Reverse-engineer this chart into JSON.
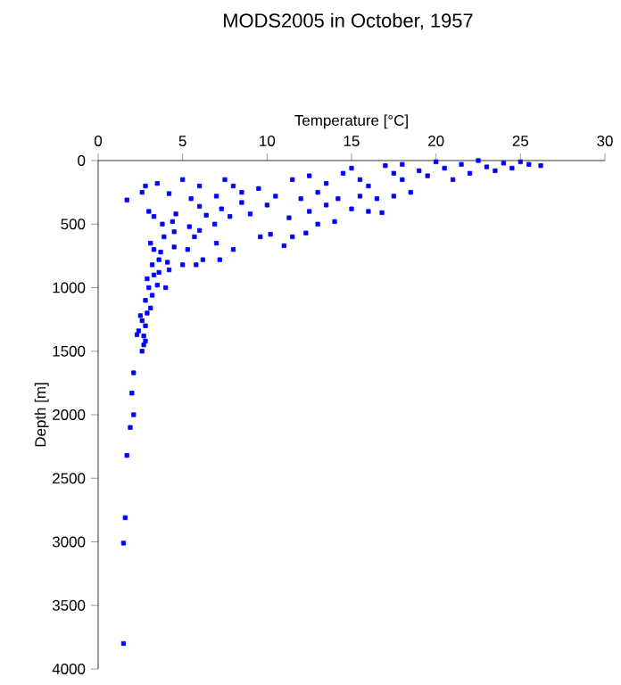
{
  "chart_data": {
    "type": "scatter",
    "title": "MODS2005 in October, 1957",
    "xlabel": "Temperature [°C]",
    "ylabel": "Depth [m]",
    "xlim": [
      0,
      30
    ],
    "xticks": [
      0,
      5,
      10,
      15,
      20,
      25,
      30
    ],
    "ylim": [
      4000,
      0
    ],
    "yticks": [
      0,
      500,
      1000,
      1500,
      2000,
      2500,
      3000,
      3500,
      4000
    ],
    "marker": "square",
    "series": [
      {
        "color": "#0000ff",
        "x": [
          1.5,
          1.5,
          1.6,
          1.7,
          1.9,
          2.1,
          2.0,
          2.1,
          2.6,
          2.7,
          2.8,
          2.7,
          2.3,
          2.4,
          2.8,
          2.6,
          2.5,
          2.9,
          3.1,
          2.8,
          3.2,
          3.0,
          3.5,
          4.0,
          2.9,
          3.3,
          3.6,
          4.2,
          3.2,
          3.6,
          4.1,
          5.0,
          5.8,
          3.3,
          3.7,
          4.5,
          5.3,
          6.2,
          7.2,
          3.1,
          3.9,
          4.5,
          5.7,
          6.0,
          7.0,
          3.8,
          4.4,
          5.4,
          6.9,
          8.0,
          3.0,
          3.3,
          4.6,
          6.4,
          7.3,
          9.6,
          10.2,
          11.0,
          11.5,
          12.3,
          13.0,
          14.0,
          2.6,
          2.8,
          1.7,
          3.5,
          4.2,
          5.0,
          6.0,
          7.5,
          8.5,
          9.5,
          10.5,
          9.0,
          11.3,
          12.5,
          13.5,
          15.0,
          16.0,
          16.8,
          14.2,
          15.5,
          16.5,
          17.5,
          18.5,
          11.5,
          12.5,
          13.5,
          14.5,
          15.0,
          15.5,
          16.0,
          17.0,
          17.5,
          18.0,
          18.0,
          19.0,
          19.5,
          20.0,
          20.5,
          21.0,
          21.5,
          22.0,
          22.5,
          23.0,
          23.5,
          24.0,
          24.5,
          25.0,
          25.5,
          26.2,
          5.5,
          7.0,
          8.0,
          12.0,
          13.0,
          6.0,
          7.8,
          10.0,
          8.5
        ],
        "values": [
          3800,
          3010,
          2810,
          2320,
          2100,
          2000,
          1830,
          1670,
          1500,
          1450,
          1420,
          1380,
          1370,
          1340,
          1300,
          1260,
          1220,
          1200,
          1160,
          1100,
          1060,
          1000,
          980,
          1000,
          930,
          900,
          880,
          860,
          820,
          780,
          800,
          820,
          820,
          700,
          720,
          680,
          700,
          780,
          780,
          650,
          600,
          560,
          600,
          550,
          650,
          500,
          480,
          520,
          500,
          700,
          400,
          440,
          420,
          430,
          380,
          600,
          580,
          670,
          600,
          570,
          500,
          480,
          250,
          200,
          310,
          180,
          260,
          150,
          200,
          150,
          250,
          220,
          280,
          420,
          450,
          400,
          350,
          380,
          400,
          410,
          300,
          280,
          300,
          280,
          250,
          150,
          120,
          180,
          100,
          60,
          150,
          200,
          40,
          100,
          150,
          30,
          80,
          120,
          10,
          60,
          150,
          30,
          100,
          0,
          50,
          80,
          20,
          60,
          10,
          30,
          40,
          300,
          280,
          200,
          300,
          250,
          360,
          440,
          350,
          330
        ]
      }
    ]
  }
}
